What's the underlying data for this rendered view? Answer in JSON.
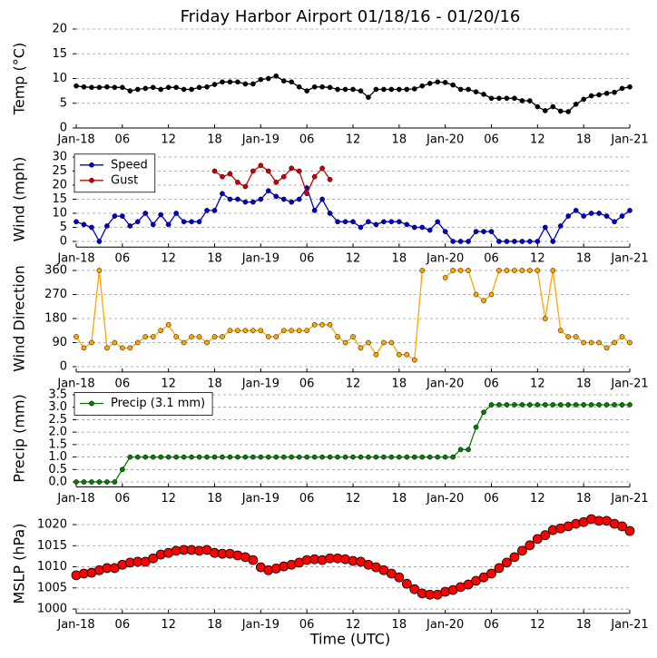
{
  "chart_data": [
    {
      "type": "line",
      "title": "Friday Harbor Airport 01/18/16 - 01/20/16",
      "ylabel": "Temp (°C)",
      "x": [
        0,
        1,
        2,
        3,
        4,
        5,
        6,
        7,
        8,
        9,
        10,
        11,
        12,
        13,
        14,
        15,
        16,
        17,
        18,
        19,
        20,
        21,
        22,
        23,
        24,
        25,
        26,
        27,
        28,
        29,
        30,
        31,
        32,
        33,
        34,
        35,
        36,
        37,
        38,
        39,
        40,
        41,
        42,
        43,
        44,
        45,
        46,
        47,
        48,
        49,
        50,
        51,
        52,
        53,
        54,
        55,
        56,
        57,
        58,
        59,
        60,
        61,
        62,
        63,
        64,
        65,
        66,
        67,
        68,
        69,
        70,
        71,
        72
      ],
      "xlim": [
        0,
        72
      ],
      "xticks": [
        {
          "value": 0,
          "label": "Jan-18"
        },
        {
          "value": 6,
          "label": "06"
        },
        {
          "value": 12,
          "label": "12"
        },
        {
          "value": 18,
          "label": "18"
        },
        {
          "value": 24,
          "label": "Jan-19"
        },
        {
          "value": 30,
          "label": "06"
        },
        {
          "value": 36,
          "label": "12"
        },
        {
          "value": 42,
          "label": "18"
        },
        {
          "value": 48,
          "label": "Jan-20"
        },
        {
          "value": 54,
          "label": "06"
        },
        {
          "value": 60,
          "label": "12"
        },
        {
          "value": 66,
          "label": "18"
        },
        {
          "value": 72,
          "label": "Jan-21"
        }
      ],
      "ylim": [
        0,
        20
      ],
      "yticks": [
        0,
        5,
        10,
        15,
        20
      ],
      "grid": true,
      "series": [
        {
          "color": "#000000",
          "values": [
            8.5,
            8.3,
            8.2,
            8.2,
            8.3,
            8.2,
            8.2,
            7.5,
            7.8,
            8,
            8.2,
            7.8,
            8.2,
            8.2,
            7.8,
            7.8,
            8.2,
            8.3,
            8.8,
            9.3,
            9.3,
            9.3,
            8.9,
            8.9,
            9.8,
            10,
            10.5,
            9.5,
            9.3,
            8.3,
            7.5,
            8.3,
            8.3,
            8.2,
            7.8,
            7.8,
            7.8,
            7.5,
            6.2,
            7.8,
            7.8,
            7.8,
            7.8,
            7.8,
            7.9,
            8.5,
            9,
            9.3,
            9.2,
            8.7,
            7.8,
            7.8,
            7.3,
            6.8,
            6,
            6,
            6,
            6,
            5.5,
            5.5,
            4.3,
            3.5,
            4.3,
            3.4,
            3.3,
            4.8,
            5.8,
            6.5,
            6.7,
            7,
            7.2,
            8,
            8.3
          ]
        }
      ]
    },
    {
      "type": "line",
      "ylabel": "Wind (mph)",
      "x": [
        0,
        1,
        2,
        3,
        4,
        5,
        6,
        7,
        8,
        9,
        10,
        11,
        12,
        13,
        14,
        15,
        16,
        17,
        18,
        19,
        20,
        21,
        22,
        23,
        24,
        25,
        26,
        27,
        28,
        29,
        30,
        31,
        32,
        33,
        34,
        35,
        36,
        37,
        38,
        39,
        40,
        41,
        42,
        43,
        44,
        45,
        46,
        47,
        48,
        49,
        50,
        51,
        52,
        53,
        54,
        55,
        56,
        57,
        58,
        59,
        60,
        61,
        62,
        63,
        64,
        65,
        66,
        67,
        68,
        69,
        70,
        71,
        72
      ],
      "xlim": [
        0,
        72
      ],
      "xticks": [
        {
          "value": 0,
          "label": "Jan-18"
        },
        {
          "value": 6,
          "label": "06"
        },
        {
          "value": 12,
          "label": "12"
        },
        {
          "value": 18,
          "label": "18"
        },
        {
          "value": 24,
          "label": "Jan-19"
        },
        {
          "value": 30,
          "label": "06"
        },
        {
          "value": 36,
          "label": "12"
        },
        {
          "value": 42,
          "label": "18"
        },
        {
          "value": 48,
          "label": "Jan-20"
        },
        {
          "value": 54,
          "label": "06"
        },
        {
          "value": 60,
          "label": "12"
        },
        {
          "value": 66,
          "label": "18"
        },
        {
          "value": 72,
          "label": "Jan-21"
        }
      ],
      "ylim": [
        -2,
        32
      ],
      "yticks": [
        0,
        5,
        10,
        15,
        20,
        25,
        30
      ],
      "grid": true,
      "legend": "upper left",
      "series": [
        {
          "name": "Speed",
          "color": "#0000cc",
          "values": [
            7,
            6,
            5,
            0,
            5.5,
            9,
            9,
            5.5,
            7,
            10,
            6,
            9.5,
            6,
            10,
            7,
            7,
            7,
            11,
            11,
            17,
            15,
            15,
            14,
            14,
            15,
            18,
            16,
            15,
            14,
            15,
            19,
            11,
            15,
            10,
            7,
            7,
            7,
            5,
            7,
            6,
            7,
            7,
            7,
            6,
            5,
            5,
            4,
            7,
            3.5,
            0,
            0,
            0,
            3.5,
            3.5,
            3.5,
            0,
            0,
            0,
            0,
            0,
            0,
            5,
            0,
            5.5,
            9,
            11,
            9,
            10,
            10,
            9,
            7,
            9,
            11
          ]
        },
        {
          "name": "Gust",
          "color": "#cc0000",
          "values": [
            null,
            null,
            null,
            null,
            null,
            null,
            null,
            null,
            null,
            null,
            null,
            null,
            null,
            null,
            null,
            null,
            null,
            null,
            25,
            23,
            24,
            21,
            19.5,
            25,
            27,
            25,
            21,
            23,
            26,
            25,
            17,
            23,
            26,
            22,
            null,
            null,
            null,
            null,
            null,
            null,
            null,
            null,
            null,
            null,
            null,
            null,
            null,
            null,
            null,
            null,
            null,
            null,
            null,
            null,
            null,
            null,
            null,
            null,
            null,
            null,
            null,
            null,
            null,
            null,
            null,
            null,
            null,
            null,
            null,
            null,
            null,
            null,
            null
          ]
        }
      ]
    },
    {
      "type": "line",
      "ylabel": "Wind Direction",
      "x": [
        0,
        1,
        2,
        3,
        4,
        5,
        6,
        7,
        8,
        9,
        10,
        11,
        12,
        13,
        14,
        15,
        16,
        17,
        18,
        19,
        20,
        21,
        22,
        23,
        24,
        25,
        26,
        27,
        28,
        29,
        30,
        31,
        32,
        33,
        34,
        35,
        36,
        37,
        38,
        39,
        40,
        41,
        42,
        43,
        44,
        45,
        46,
        47,
        48,
        49,
        50,
        51,
        52,
        53,
        54,
        55,
        56,
        57,
        58,
        59,
        60,
        61,
        62,
        63,
        64,
        65,
        66,
        67,
        68,
        69,
        70,
        71,
        72
      ],
      "xlim": [
        0,
        72
      ],
      "xticks": [
        {
          "value": 0,
          "label": "Jan-18"
        },
        {
          "value": 6,
          "label": "06"
        },
        {
          "value": 12,
          "label": "12"
        },
        {
          "value": 18,
          "label": "18"
        },
        {
          "value": 24,
          "label": "Jan-19"
        },
        {
          "value": 30,
          "label": "06"
        },
        {
          "value": 36,
          "label": "12"
        },
        {
          "value": 42,
          "label": "18"
        },
        {
          "value": 48,
          "label": "Jan-20"
        },
        {
          "value": 54,
          "label": "06"
        },
        {
          "value": 60,
          "label": "12"
        },
        {
          "value": 66,
          "label": "18"
        },
        {
          "value": 72,
          "label": "Jan-21"
        }
      ],
      "ylim": [
        -20,
        380
      ],
      "yticks": [
        0,
        90,
        180,
        270,
        360
      ],
      "grid": true,
      "series": [
        {
          "color": "#ffa500",
          "values": [
            112,
            70,
            90,
            360,
            70,
            90,
            70,
            70,
            90,
            112,
            112,
            135,
            157,
            112,
            90,
            112,
            112,
            90,
            112,
            112,
            135,
            135,
            135,
            135,
            135,
            112,
            112,
            135,
            135,
            135,
            135,
            157,
            157,
            157,
            112,
            90,
            112,
            70,
            90,
            45,
            90,
            90,
            45,
            45,
            25,
            360,
            null,
            null,
            333,
            360,
            360,
            360,
            270,
            247,
            270,
            360,
            360,
            360,
            360,
            360,
            360,
            180,
            360,
            135,
            112,
            112,
            90,
            90,
            90,
            70,
            90,
            112,
            90
          ]
        }
      ]
    },
    {
      "type": "line",
      "ylabel": "Precip (mm)",
      "x": [
        0,
        1,
        2,
        3,
        4,
        5,
        6,
        7,
        8,
        9,
        10,
        11,
        12,
        13,
        14,
        15,
        16,
        17,
        18,
        19,
        20,
        21,
        22,
        23,
        24,
        25,
        26,
        27,
        28,
        29,
        30,
        31,
        32,
        33,
        34,
        35,
        36,
        37,
        38,
        39,
        40,
        41,
        42,
        43,
        44,
        45,
        46,
        47,
        48,
        49,
        50,
        51,
        52,
        53,
        54,
        55,
        56,
        57,
        58,
        59,
        60,
        61,
        62,
        63,
        64,
        65,
        66,
        67,
        68,
        69,
        70,
        71,
        72
      ],
      "xlim": [
        0,
        72
      ],
      "xticks": [
        {
          "value": 0,
          "label": "Jan-18"
        },
        {
          "value": 6,
          "label": "06"
        },
        {
          "value": 12,
          "label": "12"
        },
        {
          "value": 18,
          "label": "18"
        },
        {
          "value": 24,
          "label": "Jan-19"
        },
        {
          "value": 30,
          "label": "06"
        },
        {
          "value": 36,
          "label": "12"
        },
        {
          "value": 42,
          "label": "18"
        },
        {
          "value": 48,
          "label": "Jan-20"
        },
        {
          "value": 54,
          "label": "06"
        },
        {
          "value": 60,
          "label": "12"
        },
        {
          "value": 66,
          "label": "18"
        },
        {
          "value": 72,
          "label": "Jan-21"
        }
      ],
      "ylim": [
        -0.2,
        3.7
      ],
      "yticks": [
        {
          "value": 0,
          "label": "0.0"
        },
        {
          "value": 0.5,
          "label": "0.5"
        },
        {
          "value": 1,
          "label": "1.0"
        },
        {
          "value": 1.5,
          "label": "1.5"
        },
        {
          "value": 2,
          "label": "2.0"
        },
        {
          "value": 2.5,
          "label": "2.5"
        },
        {
          "value": 3,
          "label": "3.0"
        },
        {
          "value": 3.5,
          "label": "3.5"
        }
      ],
      "grid": true,
      "legend": "upper left",
      "series": [
        {
          "name": "Precip (3.1 mm)",
          "color": "#008000",
          "values": [
            0,
            0,
            0,
            0,
            0,
            0,
            0.5,
            1,
            1,
            1,
            1,
            1,
            1,
            1,
            1,
            1,
            1,
            1,
            1,
            1,
            1,
            1,
            1,
            1,
            1,
            1,
            1,
            1,
            1,
            1,
            1,
            1,
            1,
            1,
            1,
            1,
            1,
            1,
            1,
            1,
            1,
            1,
            1,
            1,
            1,
            1,
            1,
            1,
            1,
            1,
            1.3,
            1.3,
            2.2,
            2.8,
            3.1,
            3.1,
            3.1,
            3.1,
            3.1,
            3.1,
            3.1,
            3.1,
            3.1,
            3.1,
            3.1,
            3.1,
            3.1,
            3.1,
            3.1,
            3.1,
            3.1,
            3.1,
            3.1
          ]
        }
      ]
    },
    {
      "type": "scatter",
      "ylabel": "MSLP (hPa)",
      "xlabel": "Time (UTC)",
      "x": [
        0,
        1,
        2,
        3,
        4,
        5,
        6,
        7,
        8,
        9,
        10,
        11,
        12,
        13,
        14,
        15,
        16,
        17,
        18,
        19,
        20,
        21,
        22,
        23,
        24,
        25,
        26,
        27,
        28,
        29,
        30,
        31,
        32,
        33,
        34,
        35,
        36,
        37,
        38,
        39,
        40,
        41,
        42,
        43,
        44,
        45,
        46,
        47,
        48,
        49,
        50,
        51,
        52,
        53,
        54,
        55,
        56,
        57,
        58,
        59,
        60,
        61,
        62,
        63,
        64,
        65,
        66,
        67,
        68,
        69,
        70,
        71,
        72
      ],
      "xlim": [
        0,
        72
      ],
      "xticks": [
        {
          "value": 0,
          "label": "Jan-18"
        },
        {
          "value": 6,
          "label": "06"
        },
        {
          "value": 12,
          "label": "12"
        },
        {
          "value": 18,
          "label": "18"
        },
        {
          "value": 24,
          "label": "Jan-19"
        },
        {
          "value": 30,
          "label": "06"
        },
        {
          "value": 36,
          "label": "12"
        },
        {
          "value": 42,
          "label": "18"
        },
        {
          "value": 48,
          "label": "Jan-20"
        },
        {
          "value": 54,
          "label": "06"
        },
        {
          "value": 60,
          "label": "12"
        },
        {
          "value": 66,
          "label": "18"
        },
        {
          "value": 72,
          "label": "Jan-21"
        }
      ],
      "ylim": [
        999,
        1022.5
      ],
      "yticks": [
        1000,
        1005,
        1010,
        1015,
        1020
      ],
      "grid": true,
      "series": [
        {
          "color": "#ff0000",
          "values": [
            1008,
            1008.4,
            1008.6,
            1009.2,
            1009.7,
            1009.7,
            1010.5,
            1011,
            1011.2,
            1011.2,
            1012,
            1012.9,
            1013.3,
            1013.8,
            1014,
            1014,
            1013.8,
            1014,
            1013.3,
            1013.1,
            1013.1,
            1012.7,
            1012.3,
            1011.6,
            1009.9,
            1009.2,
            1009.6,
            1010.1,
            1010.5,
            1011,
            1011.6,
            1011.8,
            1011.6,
            1012,
            1012,
            1011.8,
            1011.4,
            1011.2,
            1010.5,
            1009.9,
            1009.2,
            1008.4,
            1007.5,
            1006,
            1004.7,
            1003.7,
            1003.4,
            1003.4,
            1004.1,
            1004.5,
            1005.2,
            1005.8,
            1006.7,
            1007.5,
            1008.4,
            1009.7,
            1011,
            1012.3,
            1013.8,
            1015.1,
            1016.6,
            1017.5,
            1018.7,
            1019.1,
            1019.6,
            1020.2,
            1020.6,
            1021.3,
            1020.9,
            1020.9,
            1020.2,
            1019.6,
            1018.5
          ]
        }
      ]
    }
  ]
}
